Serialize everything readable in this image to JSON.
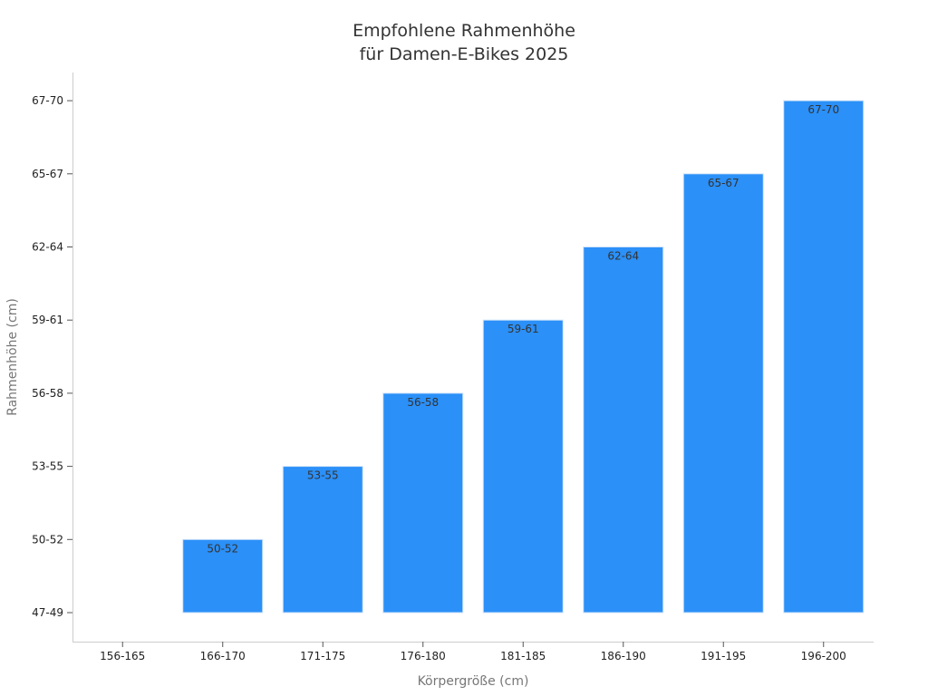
{
  "chart_data": {
    "type": "bar",
    "title_lines": [
      "Empfohlene Rahmenhöhe",
      "für Damen-E-Bikes 2025"
    ],
    "xlabel": "Körpergröße (cm)",
    "ylabel": "Rahmenhöhe (cm)",
    "categories": [
      "156-165",
      "166-170",
      "171-175",
      "176-180",
      "181-185",
      "186-190",
      "191-195",
      "196-200"
    ],
    "y_categories": [
      "47-49",
      "50-52",
      "53-55",
      "56-58",
      "59-61",
      "62-64",
      "65-67",
      "67-70"
    ],
    "values": [
      null,
      "50-52",
      "53-55",
      "56-58",
      "59-61",
      "62-64",
      "65-67",
      "67-70"
    ],
    "data_labels": [
      "",
      "50-52",
      "53-55",
      "56-58",
      "59-61",
      "62-64",
      "65-67",
      "67-70"
    ],
    "bar_color": "#2b90f8",
    "grid": false,
    "legend": "none"
  }
}
